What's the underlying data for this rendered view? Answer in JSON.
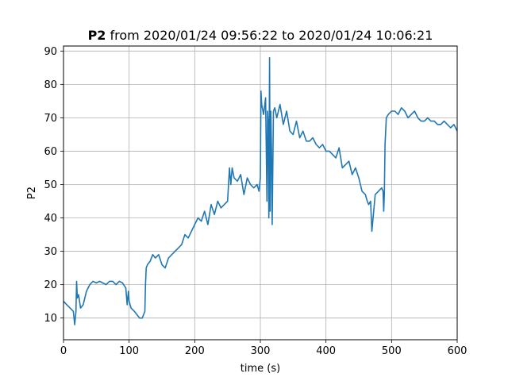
{
  "chart_data": {
    "type": "line",
    "title": {
      "bold": "P2",
      "rest": " from 2020/01/24 09:56:22 to 2020/01/24 10:06:21"
    },
    "xlabel": "time (s)",
    "ylabel": "P2",
    "xlim": [
      0,
      600
    ],
    "ylim": [
      3.5,
      91.5
    ],
    "xticks": [
      0,
      100,
      200,
      300,
      400,
      500,
      600
    ],
    "yticks": [
      10,
      20,
      30,
      40,
      50,
      60,
      70,
      80,
      90
    ],
    "grid": true,
    "legend": "none",
    "series": [
      {
        "color": "#1f77b4",
        "x": [
          0,
          5,
          10,
          15,
          17,
          19,
          20,
          21,
          23,
          26,
          30,
          35,
          40,
          45,
          50,
          55,
          60,
          65,
          70,
          75,
          80,
          85,
          90,
          95,
          97,
          99,
          100,
          103,
          108,
          112,
          116,
          120,
          124,
          125,
          126,
          128,
          132,
          136,
          140,
          145,
          150,
          155,
          160,
          165,
          170,
          175,
          180,
          185,
          190,
          195,
          200,
          205,
          210,
          215,
          220,
          225,
          230,
          235,
          240,
          245,
          250,
          253,
          255,
          257,
          260,
          265,
          270,
          275,
          280,
          285,
          290,
          295,
          298,
          300,
          301,
          302,
          305,
          308,
          310,
          311,
          312,
          313,
          314,
          315,
          316,
          317,
          318,
          320,
          322,
          325,
          330,
          335,
          340,
          345,
          350,
          355,
          360,
          365,
          370,
          375,
          380,
          385,
          390,
          395,
          400,
          405,
          410,
          415,
          420,
          425,
          430,
          435,
          440,
          445,
          450,
          455,
          460,
          463,
          465,
          468,
          470,
          475,
          480,
          485,
          487,
          488,
          489,
          490,
          492,
          495,
          500,
          505,
          510,
          515,
          520,
          525,
          530,
          535,
          540,
          545,
          550,
          555,
          560,
          565,
          570,
          575,
          580,
          585,
          590,
          595,
          600
        ],
        "y": [
          15,
          14,
          13,
          12,
          8,
          12,
          21,
          16,
          17,
          13,
          14,
          18,
          20,
          21,
          20.5,
          21,
          20.5,
          20,
          21,
          21,
          20,
          21,
          20.5,
          19,
          14,
          18,
          15,
          13,
          12,
          11,
          10,
          10,
          12,
          20,
          25,
          26,
          27,
          29,
          28,
          29,
          26,
          25,
          28,
          29,
          30,
          31,
          32,
          35,
          34,
          36,
          38,
          40,
          39,
          42,
          38,
          44,
          41,
          45,
          43,
          44,
          45,
          55,
          50,
          55,
          52,
          51,
          53,
          47,
          52,
          50,
          49,
          50,
          48,
          52,
          78,
          74,
          71,
          76,
          45,
          72,
          68,
          40,
          88,
          42,
          72,
          60,
          38,
          72,
          73,
          70,
          74,
          68,
          72,
          66,
          65,
          69,
          64,
          66,
          63,
          63,
          64,
          62,
          61,
          62,
          60,
          60,
          59,
          58,
          61,
          55,
          56,
          57,
          53,
          55,
          52,
          48,
          47,
          45,
          44,
          45,
          36,
          47,
          48,
          49,
          48,
          42,
          47,
          62,
          70,
          71,
          72,
          72,
          71,
          73,
          72,
          70,
          71,
          72,
          70,
          69,
          69,
          70,
          69,
          69,
          68,
          68,
          69,
          68,
          67,
          68,
          66
        ]
      }
    ]
  }
}
